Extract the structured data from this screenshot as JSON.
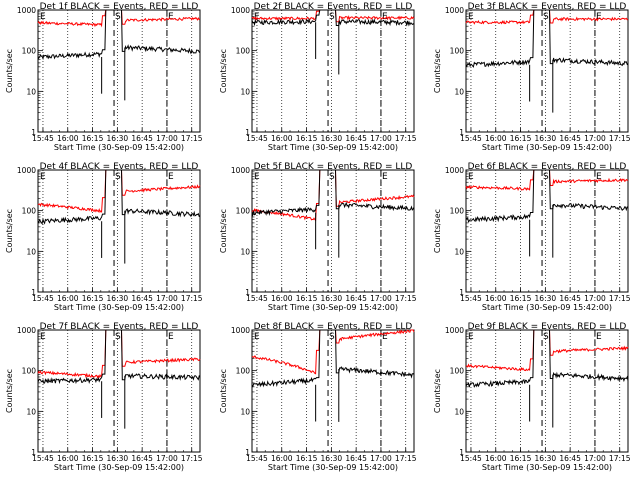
{
  "chart_data": {
    "type": "line",
    "layout": "3x3 grid",
    "x_axis": {
      "ticks": [
        "15:45",
        "16:00",
        "16:15",
        "16:30",
        "16:45",
        "17:00",
        "17:15"
      ],
      "range_minutes": [
        -3,
        95
      ],
      "label": "Start Time (30-Sep-09 15:42:00)"
    },
    "y_axis": {
      "scale": "log",
      "range": [
        1,
        1000
      ],
      "ticks": [
        "1",
        "10",
        "100",
        "1000"
      ],
      "label": "Counts/sec"
    },
    "markers": [
      {
        "label": "S",
        "minute_from_start": 43
      },
      {
        "label": "E",
        "minute_from_start": 75
      }
    ],
    "colors": {
      "events": "#000000",
      "lld": "#ff0000",
      "grid": "#000000"
    },
    "panels": [
      {
        "title": "Det 1f BLACK = Events, RED = LLD",
        "events_level": 70,
        "lld_level": 480,
        "events_after": 120,
        "lld_after": 560,
        "events_trend": 0.2,
        "lld_trend": -0.1
      },
      {
        "title": "Det 2f BLACK = Events, RED = LLD",
        "events_level": 500,
        "lld_level": 620,
        "events_after": 520,
        "lld_after": 640,
        "events_trend": 0.05,
        "lld_trend": 0.0
      },
      {
        "title": "Det 3f BLACK = Events, RED = LLD",
        "events_level": 45,
        "lld_level": 500,
        "events_after": 60,
        "lld_after": 600,
        "events_trend": 0.2,
        "lld_trend": 0.0
      },
      {
        "title": "Det 4f BLACK = Events, RED = LLD",
        "events_level": 55,
        "lld_level": 140,
        "events_after": 100,
        "lld_after": 300,
        "events_trend": 0.2,
        "lld_trend": -0.3
      },
      {
        "title": "Det 5f BLACK = Events, RED = LLD",
        "events_level": 90,
        "lld_level": 100,
        "events_after": 140,
        "lld_after": 160,
        "events_trend": 0.2,
        "lld_trend": -0.4
      },
      {
        "title": "Det 6f BLACK = Events, RED = LLD",
        "events_level": 60,
        "lld_level": 380,
        "events_after": 140,
        "lld_after": 520,
        "events_trend": 0.2,
        "lld_trend": -0.1
      },
      {
        "title": "Det 7f BLACK = Events, RED = LLD",
        "events_level": 55,
        "lld_level": 90,
        "events_after": 75,
        "lld_after": 160,
        "events_trend": 0.1,
        "lld_trend": -0.2
      },
      {
        "title": "Det 8f BLACK = Events, RED = LLD",
        "events_level": 45,
        "lld_level": 210,
        "events_after": 110,
        "lld_after": 600,
        "events_trend": 0.3,
        "lld_trend": -0.6
      },
      {
        "title": "Det 9f BLACK = Events, RED = LLD",
        "events_level": 45,
        "lld_level": 130,
        "events_after": 80,
        "lld_after": 300,
        "events_trend": 0.2,
        "lld_trend": -0.2
      }
    ]
  }
}
